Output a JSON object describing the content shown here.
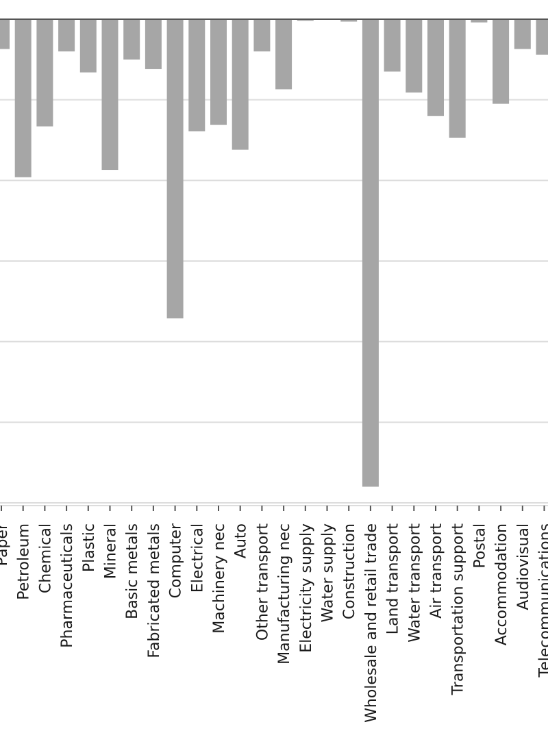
{
  "colors": {
    "bar": "#a6a6a6",
    "grid": "#dddddd",
    "axis": "#555555",
    "text": "#1a1a1a",
    "background": "#ffffff"
  },
  "chart_data": {
    "type": "bar",
    "title": "",
    "xlabel": "",
    "ylabel": "",
    "grid": "horizontal",
    "legend": "none",
    "ylim": [
      -6,
      0
    ],
    "categories": [
      "Paper",
      "Petroleum",
      "Chemical",
      "Pharmaceuticals",
      "Plastic",
      "Mineral",
      "Basic metals",
      "Fabricated metals",
      "Computer",
      "Electrical",
      "Machinery nec",
      "Auto",
      "Other transport",
      "Manufacturing nec",
      "Electricity supply",
      "Water supply",
      "Construction",
      "Wholesale and retail trade",
      "Land transport",
      "Water transport",
      "Air transport",
      "Transportation support",
      "Postal",
      "Accommodation",
      "Audiovisual",
      "Telecommunications"
    ],
    "values": [
      -0.37,
      -1.96,
      -1.33,
      -0.4,
      -0.66,
      -1.87,
      -0.5,
      -0.62,
      -3.71,
      -1.39,
      -1.31,
      -1.62,
      -0.4,
      -0.87,
      -0.02,
      0,
      -0.03,
      -5.8,
      -0.65,
      -0.91,
      -1.2,
      -1.47,
      -0.04,
      -1.05,
      -0.37,
      -0.44
    ]
  }
}
